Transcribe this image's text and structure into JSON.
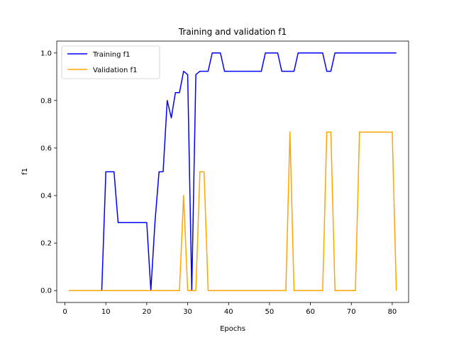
{
  "chart_data": {
    "type": "line",
    "title": "Training and validation f1",
    "xlabel": "Epochs",
    "ylabel": "f1",
    "xlim": [
      -2,
      84
    ],
    "ylim": [
      -0.05,
      1.05
    ],
    "xticks": [
      0,
      10,
      20,
      30,
      40,
      50,
      60,
      70,
      80
    ],
    "yticks": [
      0.0,
      0.2,
      0.4,
      0.6,
      0.8,
      1.0
    ],
    "ytick_labels": [
      "0.0",
      "0.2",
      "0.4",
      "0.6",
      "0.8",
      "1.0"
    ],
    "grid": false,
    "legend": "upper-left",
    "x": [
      1,
      2,
      3,
      4,
      5,
      6,
      7,
      8,
      9,
      10,
      11,
      12,
      13,
      14,
      15,
      16,
      17,
      18,
      19,
      20,
      21,
      22,
      23,
      24,
      25,
      26,
      27,
      28,
      29,
      30,
      31,
      32,
      33,
      34,
      35,
      36,
      37,
      38,
      39,
      40,
      41,
      42,
      43,
      44,
      45,
      46,
      47,
      48,
      49,
      50,
      51,
      52,
      53,
      54,
      55,
      56,
      57,
      58,
      59,
      60,
      61,
      62,
      63,
      64,
      65,
      66,
      67,
      68,
      69,
      70,
      71,
      72,
      73,
      74,
      75,
      76,
      77,
      78,
      79,
      80,
      81
    ],
    "series": [
      {
        "name": "Training f1",
        "color": "#0000ff",
        "values": [
          0,
          0,
          0,
          0,
          0,
          0,
          0,
          0,
          0,
          0.5,
          0.5,
          0.5,
          0.286,
          0.286,
          0.286,
          0.286,
          0.286,
          0.286,
          0.286,
          0.286,
          0,
          0.286,
          0.5,
          0.5,
          0.8,
          0.727,
          0.833,
          0.833,
          0.923,
          0.909,
          0,
          0.909,
          0.923,
          0.923,
          0.923,
          1.0,
          1.0,
          1.0,
          0.923,
          0.923,
          0.923,
          0.923,
          0.923,
          0.923,
          0.923,
          0.923,
          0.923,
          0.923,
          1.0,
          1.0,
          1.0,
          1.0,
          0.923,
          0.923,
          0.923,
          0.923,
          1.0,
          1.0,
          1.0,
          1.0,
          1.0,
          1.0,
          1.0,
          0.923,
          0.923,
          1.0,
          1.0,
          1.0,
          1.0,
          1.0,
          1.0,
          1.0,
          1.0,
          1.0,
          1.0,
          1.0,
          1.0,
          1.0,
          1.0,
          1.0,
          1.0
        ]
      },
      {
        "name": "Validation f1",
        "color": "#ffa500",
        "values": [
          0,
          0,
          0,
          0,
          0,
          0,
          0,
          0,
          0,
          0,
          0,
          0,
          0,
          0,
          0,
          0,
          0,
          0,
          0,
          0,
          0,
          0,
          0,
          0,
          0,
          0,
          0,
          0,
          0.4,
          0,
          0,
          0,
          0.5,
          0.5,
          0,
          0,
          0,
          0,
          0,
          0,
          0,
          0,
          0,
          0,
          0,
          0,
          0,
          0,
          0,
          0,
          0,
          0,
          0,
          0,
          0.667,
          0,
          0,
          0,
          0,
          0,
          0,
          0,
          0,
          0.667,
          0.667,
          0,
          0,
          0,
          0,
          0,
          0,
          0.667,
          0.667,
          0.667,
          0.667,
          0.667,
          0.667,
          0.667,
          0.667,
          0.667,
          0
        ]
      }
    ]
  }
}
